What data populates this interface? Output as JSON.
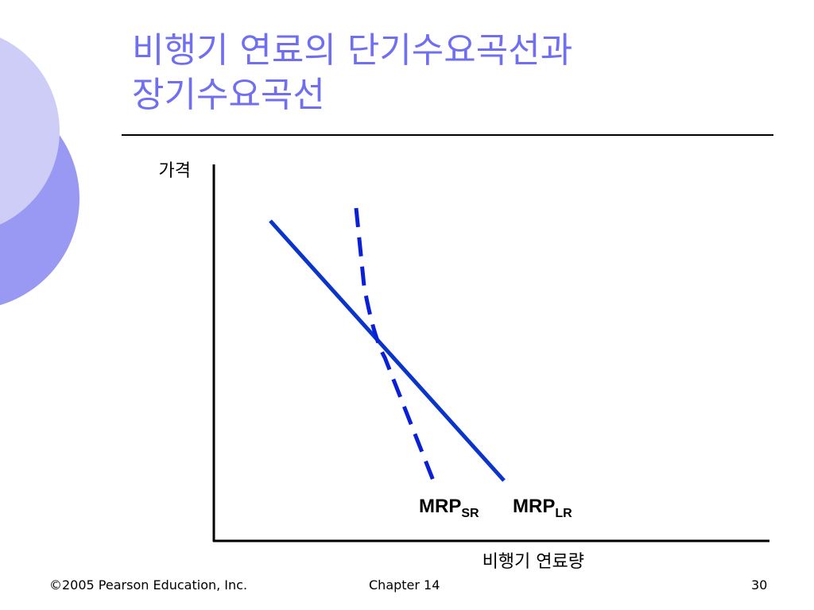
{
  "slide": {
    "title_line1": "비행기 연료의 단기수요곡선과",
    "title_line2": "장기수요곡선"
  },
  "diagram": {
    "y_axis_label": "가격",
    "x_axis_label": "비행기 연료량",
    "curves": [
      {
        "id": "sr",
        "base": "MRP",
        "subscript": "SR",
        "style": "dashed",
        "color": "#0a1fd6"
      },
      {
        "id": "lr",
        "base": "MRP",
        "subscript": "LR",
        "style": "solid",
        "color": "#0a35c8"
      }
    ]
  },
  "footer": {
    "copyright": "©2005 Pearson Education, Inc.",
    "chapter": "Chapter 14",
    "page": "30"
  },
  "colors": {
    "title": "#6f6ff0",
    "circle_light": "#cdcdf8",
    "circle_dark": "#9999f3"
  }
}
